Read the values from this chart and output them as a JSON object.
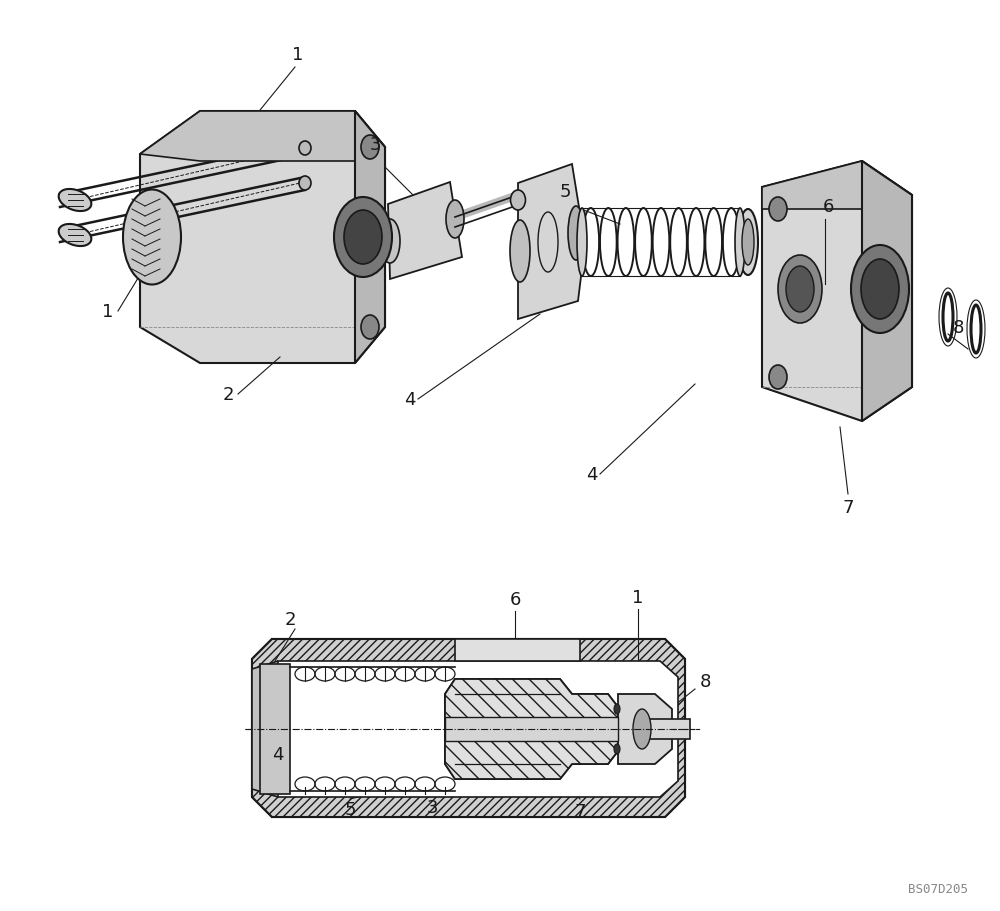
{
  "bg_color": "#ffffff",
  "line_color": "#1a1a1a",
  "label_color": "#1a1a1a",
  "watermark": "BS07D205"
}
